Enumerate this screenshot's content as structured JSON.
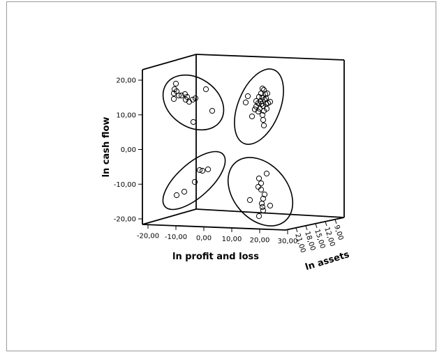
{
  "chart_data": {
    "type": "scatter",
    "title": "",
    "xlabel": "ln profit and loss",
    "ylabel": "ln cash flow",
    "zlabel": "ln assets",
    "xlim": [
      -20,
      30
    ],
    "ylim": [
      -20,
      20
    ],
    "zlim": [
      9,
      21
    ],
    "x_ticks": [
      "-20,00",
      "-10,00",
      "0,00",
      "10,00",
      "20,00",
      "30,00"
    ],
    "y_ticks": [
      "20,00",
      "10,00",
      "0,00",
      "-10,00",
      "-20,00"
    ],
    "z_ticks": [
      "9,00",
      "12,00",
      "15,00",
      "18,00",
      "21,00"
    ],
    "grid": false,
    "marker": "open-circle",
    "clusters": 4
  }
}
